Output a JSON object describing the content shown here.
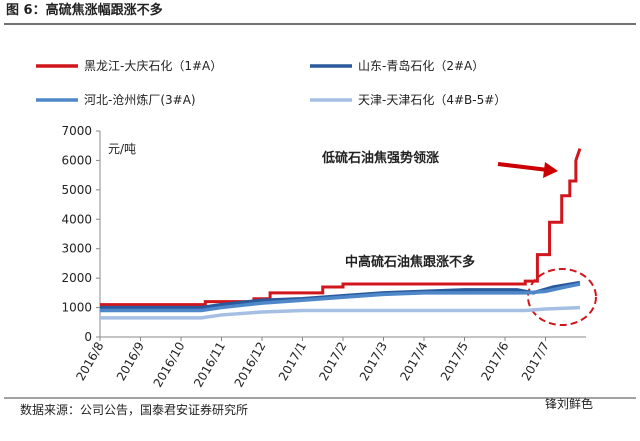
{
  "chart_data": {
    "type": "line",
    "title": "图 6：高硫焦涨幅跟涨不多",
    "y_label": "元/吨",
    "source": "数据来源：公司公告，国泰君安证券研究所",
    "watermark": "锋刘鲜色",
    "annotations": [
      "低硫石油焦强势领涨",
      "中高硫石油焦跟涨不多"
    ],
    "xlim": [
      0,
      12
    ],
    "ylim": [
      0,
      7000
    ],
    "yticks": [
      0,
      1000,
      2000,
      3000,
      4000,
      5000,
      6000,
      7000
    ],
    "xticks": [
      {
        "value": 0,
        "label": "2016/8"
      },
      {
        "value": 1,
        "label": "2016/9"
      },
      {
        "value": 2,
        "label": "2016/10"
      },
      {
        "value": 3,
        "label": "2016/11"
      },
      {
        "value": 4,
        "label": "2016/12"
      },
      {
        "value": 5,
        "label": "2017/1"
      },
      {
        "value": 6,
        "label": "2017/2"
      },
      {
        "value": 7,
        "label": "2017/3"
      },
      {
        "value": 8,
        "label": "2017/4"
      },
      {
        "value": 9,
        "label": "2017/5"
      },
      {
        "value": 10,
        "label": "2017/6"
      },
      {
        "value": 11,
        "label": "2017/7"
      }
    ],
    "series": [
      {
        "name": "黑龙江-大庆石化（1#A）",
        "color": "#d0161c",
        "x": [
          0,
          2.6,
          2.6,
          3.8,
          3.8,
          4.2,
          4.2,
          5.5,
          5.5,
          6,
          6,
          10.3,
          10.5,
          10.5,
          10.8,
          10.8,
          11.1,
          11.1,
          11.4,
          11.4,
          11.6,
          11.6,
          11.75,
          11.75,
          11.85
        ],
        "values": [
          1100,
          1100,
          1200,
          1200,
          1300,
          1300,
          1500,
          1500,
          1700,
          1700,
          1800,
          1800,
          1800,
          1900,
          1900,
          2800,
          2800,
          3900,
          3900,
          4800,
          4800,
          5300,
          5300,
          6000,
          6400
        ]
      },
      {
        "name": "山东-青岛石化（2#A）",
        "color": "#2a5a9c",
        "x": [
          0,
          2.5,
          3,
          4,
          5,
          6,
          7,
          8,
          9,
          10.3,
          10.7,
          11.2,
          11.85
        ],
        "values": [
          1000,
          1000,
          1100,
          1250,
          1300,
          1400,
          1500,
          1550,
          1600,
          1600,
          1500,
          1700,
          1850
        ]
      },
      {
        "name": "河北-沧州炼厂(3#A)",
        "color": "#4f88c9",
        "x": [
          0,
          2.5,
          3,
          4,
          5,
          6,
          7,
          8,
          10.5,
          11,
          11.5,
          11.85
        ],
        "values": [
          900,
          900,
          1000,
          1150,
          1250,
          1350,
          1450,
          1500,
          1500,
          1550,
          1700,
          1800
        ]
      },
      {
        "name": "天津-天津石化（4#B-5#）",
        "color": "#a4bfe3",
        "x": [
          0,
          2.5,
          3,
          4,
          5,
          10.5,
          11,
          11.85
        ],
        "values": [
          650,
          650,
          750,
          850,
          900,
          900,
          950,
          1000
        ]
      }
    ]
  }
}
